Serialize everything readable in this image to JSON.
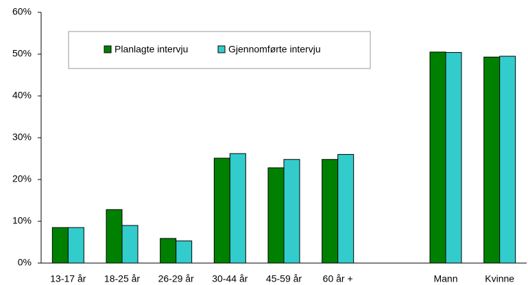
{
  "chart_data": {
    "type": "bar",
    "categories": [
      "13-17 år",
      "18-25 år",
      "26-29 år",
      "30-44 år",
      "45-59 år",
      "60 år +",
      null,
      "Mann",
      "Kvinne"
    ],
    "series": [
      {
        "name": "Planlagte intervju",
        "color": "#008000",
        "values": [
          8.5,
          12.8,
          5.9,
          25.1,
          22.8,
          24.8,
          null,
          50.5,
          49.3
        ]
      },
      {
        "name": "Gjennomførte intervju",
        "color": "#33cccc",
        "values": [
          8.5,
          9.0,
          5.3,
          26.2,
          24.8,
          26.0,
          null,
          50.4,
          49.5
        ]
      }
    ],
    "ylim": [
      0,
      60
    ],
    "yticks": [
      {
        "value": 0,
        "label": "0%"
      },
      {
        "value": 10,
        "label": "10%"
      },
      {
        "value": 20,
        "label": "20%"
      },
      {
        "value": 30,
        "label": "30%"
      },
      {
        "value": 40,
        "label": "40%"
      },
      {
        "value": 50,
        "label": "50%"
      },
      {
        "value": 60,
        "label": "60%"
      }
    ],
    "legend": "upper left"
  }
}
